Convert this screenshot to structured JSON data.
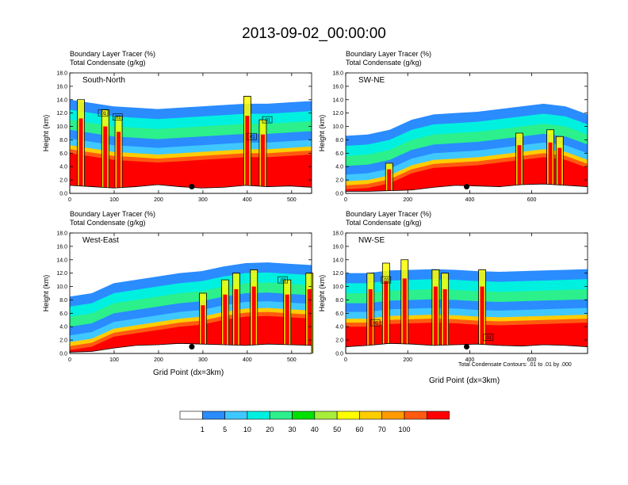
{
  "main_title": "2013-09-02_00:00:00",
  "field_labels": [
    "Boundary Layer Tracer   (%)",
    "Total Condensate   (g/kg)"
  ],
  "x_axis_label": "Grid Point (dx=3km)",
  "contour_note": "Total Condensate Contours: .01 to .01 by .000",
  "colorbar": {
    "colors": [
      "#ffffff",
      "#2a8cff",
      "#3fc8ff",
      "#00f0e0",
      "#2cf08c",
      "#00e000",
      "#a8ec3c",
      "#ffff00",
      "#ffcc00",
      "#ff9a00",
      "#ff5a10",
      "#ff0000"
    ],
    "labels": [
      "1",
      "5",
      "10",
      "20",
      "30",
      "40",
      "50",
      "60",
      "70",
      "100"
    ]
  },
  "chart_data": [
    {
      "type": "heatmap",
      "panel": "South-North",
      "title": "South-North",
      "field_1": "Boundary Layer Tracer (%)",
      "field_2": "Total Condensate (g/kg)",
      "xlabel": "",
      "ylabel": "Height (km)",
      "xlim": [
        0,
        545
      ],
      "ylim": [
        0,
        18
      ],
      "xticks": [
        0,
        100,
        200,
        300,
        400,
        500
      ],
      "yticks": [
        "0.0",
        "2.0",
        "4.0",
        "6.0",
        "8.0",
        "10.0",
        "12.0",
        "14.0",
        "16.0",
        "18.0"
      ],
      "terrain_max_km": [
        1.2,
        1.0,
        0.8,
        1.0,
        1.3,
        1.0,
        0.8,
        0.9,
        1.2,
        1.0,
        1.1,
        0.9
      ],
      "boundary_layer_top_km": [
        6.0,
        5.5,
        5.0,
        4.8,
        4.6,
        4.8,
        5.0,
        5.2,
        5.4,
        5.4,
        5.6,
        5.8
      ],
      "convective_towers": [
        {
          "x": 25,
          "top_km": 14.0
        },
        {
          "x": 80,
          "top_km": 12.5
        },
        {
          "x": 110,
          "top_km": 11.5
        },
        {
          "x": 400,
          "top_km": 14.5
        },
        {
          "x": 435,
          "top_km": 11.0
        }
      ],
      "contour_labels": [
        {
          "x": 75,
          "z": 12.0,
          "text": ".01"
        },
        {
          "x": 108,
          "z": 11.4,
          "text": ".01"
        },
        {
          "x": 410,
          "z": 8.5,
          "text": ".01"
        },
        {
          "x": 445,
          "z": 11.0,
          "text": ".01"
        }
      ],
      "marker": {
        "x": 275,
        "z": 1.0
      }
    },
    {
      "type": "heatmap",
      "panel": "SW-NE",
      "title": "SW-NE",
      "field_1": "Boundary Layer Tracer (%)",
      "field_2": "Total Condensate (g/kg)",
      "xlabel": "",
      "ylabel": "Height (km)",
      "xlim": [
        0,
        780
      ],
      "ylim": [
        0,
        18
      ],
      "xticks": [
        0,
        200,
        400,
        600
      ],
      "yticks": [
        "0.0",
        "2.0",
        "4.0",
        "6.0",
        "8.0",
        "10.0",
        "12.0",
        "14.0",
        "16.0",
        "18.0"
      ],
      "terrain_max_km": [
        0.3,
        0.3,
        0.4,
        0.5,
        0.9,
        1.2,
        1.1,
        1.0,
        1.3,
        1.4,
        1.2,
        1.0
      ],
      "boundary_layer_top_km": [
        0.6,
        0.8,
        1.5,
        3.0,
        3.8,
        4.0,
        4.2,
        4.6,
        5.0,
        5.4,
        5.0,
        3.8
      ],
      "convective_towers": [
        {
          "x": 140,
          "top_km": 4.5
        },
        {
          "x": 560,
          "top_km": 9.0
        },
        {
          "x": 660,
          "top_km": 9.5
        },
        {
          "x": 690,
          "top_km": 8.5
        }
      ],
      "contour_labels": [],
      "marker": {
        "x": 390,
        "z": 1.0
      }
    },
    {
      "type": "heatmap",
      "panel": "West-East",
      "title": "West-East",
      "field_1": "Boundary Layer Tracer (%)",
      "field_2": "Total Condensate (g/kg)",
      "xlabel": "Grid Point (dx=3km)",
      "ylabel": "Height (km)",
      "xlim": [
        0,
        545
      ],
      "ylim": [
        0,
        18
      ],
      "xticks": [
        0,
        100,
        200,
        300,
        400,
        500
      ],
      "yticks": [
        "0.0",
        "2.0",
        "4.0",
        "6.0",
        "8.0",
        "10.0",
        "12.0",
        "14.0",
        "16.0",
        "18.0"
      ],
      "terrain_max_km": [
        0.2,
        0.3,
        0.8,
        1.2,
        1.3,
        1.5,
        1.4,
        1.3,
        1.2,
        1.4,
        1.3,
        1.2
      ],
      "boundary_layer_top_km": [
        0.5,
        1.0,
        2.5,
        3.0,
        3.5,
        4.0,
        4.3,
        5.0,
        5.5,
        5.6,
        5.4,
        5.2
      ],
      "convective_towers": [
        {
          "x": 300,
          "top_km": 9.0
        },
        {
          "x": 350,
          "top_km": 11.0
        },
        {
          "x": 375,
          "top_km": 12.0
        },
        {
          "x": 415,
          "top_km": 12.5
        },
        {
          "x": 490,
          "top_km": 11.0
        },
        {
          "x": 540,
          "top_km": 12.0
        }
      ],
      "contour_labels": [
        {
          "x": 480,
          "z": 11.0,
          "text": ".01"
        }
      ],
      "marker": {
        "x": 275,
        "z": 1.0
      }
    },
    {
      "type": "heatmap",
      "panel": "NW-SE",
      "title": "NW-SE",
      "field_1": "Boundary Layer Tracer (%)",
      "field_2": "Total Condensate (g/kg)",
      "xlabel": "Grid Point (dx=3km)",
      "ylabel": "Height (km)",
      "xlim": [
        0,
        780
      ],
      "ylim": [
        0,
        18
      ],
      "xticks": [
        0,
        200,
        400,
        600
      ],
      "yticks": [
        "0.0",
        "2.0",
        "4.0",
        "6.0",
        "8.0",
        "10.0",
        "12.0",
        "14.0",
        "16.0",
        "18.0"
      ],
      "terrain_max_km": [
        1.0,
        1.2,
        1.5,
        1.4,
        1.2,
        1.3,
        1.4,
        1.2,
        1.1,
        1.3,
        1.2,
        1.0
      ],
      "boundary_layer_top_km": [
        4.0,
        4.0,
        4.4,
        4.5,
        4.6,
        4.5,
        4.3,
        4.2,
        4.3,
        4.4,
        4.5,
        4.6
      ],
      "convective_towers": [
        {
          "x": 80,
          "top_km": 12.0
        },
        {
          "x": 130,
          "top_km": 13.5
        },
        {
          "x": 190,
          "top_km": 14.0
        },
        {
          "x": 290,
          "top_km": 12.5
        },
        {
          "x": 320,
          "top_km": 12.0
        },
        {
          "x": 440,
          "top_km": 12.5
        }
      ],
      "contour_labels": [
        {
          "x": 95,
          "z": 4.6,
          "text": ".01"
        },
        {
          "x": 130,
          "z": 11.0,
          "text": ".01"
        },
        {
          "x": 460,
          "z": 2.4,
          "text": ".01"
        }
      ],
      "marker": {
        "x": 390,
        "z": 1.0
      }
    }
  ]
}
